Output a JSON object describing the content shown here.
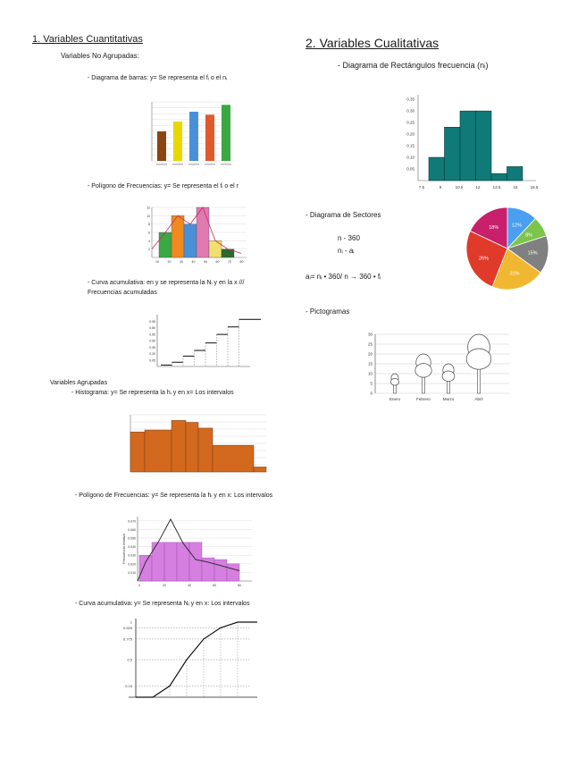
{
  "left": {
    "heading": "1. Variables Cuantitativas",
    "no_agrupadas": "Variables No Agrupadas:",
    "barras_label": "- Diagrama de barras: y= Se representa el fᵢ o el nᵢ",
    "poligono_label": "- Polígono de Frecuencias: y= Se representa el fᵢ o el r",
    "curva_label_1": "- Curva acumulativa: en y se representa la Nᵢ y en la x ///",
    "curva_label_2": "Frecuencias acumuladas",
    "agrupadas": "Variables Agrupadas",
    "histograma_label": "- Histograma: y= Se representa la hᵢ y en x= Los intervalos",
    "poligono2_label": "- Polígono de Frecuencias: y= Se representa la hᵢ y en x: Los intervalos",
    "curva2_label": "- Curva acumulativa: y= Se representa Nᵢ y en x: Los intervalos"
  },
  "right": {
    "heading": "2. Variables Cualitativas",
    "rect_label": "- Diagrama de Rectángulos frecuencia (nᵢ)",
    "sectores_label": "- Diagrama de Sectores",
    "rule_1": "n - 360",
    "rule_2": "nᵢ - aᵢ",
    "formula": "aᵢ= nᵢ • 360/ n → 360 • fᵢ",
    "picto_label": "- Pictogramas"
  },
  "colors": {
    "teal": "#107a78",
    "orange_bar": "#d2691e",
    "violet": "#d57fe0",
    "brown": "#8b4513",
    "yellow": "#e8d800",
    "blue": "#4a90d9",
    "red_orange": "#e05a2b",
    "green": "#3aa843",
    "pie_blue": "#4a9ff0",
    "pie_green": "#7cc54a",
    "pie_gray": "#808080",
    "pie_yellow": "#f0b830",
    "pie_red": "#e03a2a",
    "pie_magenta": "#c8206a"
  },
  "chart_data": [
    {
      "id": "barras",
      "type": "bar",
      "values": [
        3,
        4,
        5,
        4.7,
        5.7
      ],
      "colors": [
        "#8b4513",
        "#e8d800",
        "#4a90d9",
        "#e05a2b",
        "#3aa843"
      ],
      "ylim": [
        0,
        6
      ]
    },
    {
      "id": "poligono_frecuencias",
      "type": "bar",
      "y_ticks": [
        "2",
        "4",
        "6",
        "8",
        "10",
        "12"
      ],
      "x_ticks": [
        "10",
        "20",
        "30",
        "40",
        "50",
        "60",
        "70",
        "80"
      ],
      "values": [
        6,
        10,
        8,
        12,
        4,
        2
      ],
      "ylim": [
        0,
        12
      ]
    },
    {
      "id": "curva_acumulativa",
      "type": "line",
      "y_ticks": [
        "0.05",
        "0.20",
        "0.35",
        "0.50",
        "0.65",
        "0.80",
        "0.95"
      ],
      "values": [
        0.03,
        0.09,
        0.22,
        0.34,
        0.5,
        0.68,
        0.84,
        1.0
      ],
      "ylim": [
        0,
        1.1
      ]
    },
    {
      "id": "histograma",
      "type": "bar",
      "values": [
        10.5,
        11,
        13.5,
        13,
        11.5,
        7,
        1.3
      ],
      "ylim": [
        0,
        15
      ]
    },
    {
      "id": "poligono_intervalos",
      "type": "area",
      "ylabel": "Frecuencia relativa",
      "y_ticks": [
        "0.010",
        "0.020",
        "0.030",
        "0.040",
        "0.050",
        "0.060",
        "0.070"
      ],
      "values": [
        0.022,
        0.045,
        0.072,
        0.044,
        0.025,
        0.022,
        0.018,
        0.014
      ],
      "ylim": [
        0,
        0.075
      ]
    },
    {
      "id": "curva_acumulativa_intervalos",
      "type": "line",
      "y_ticks": [
        "1",
        "0.925",
        "0.775",
        "0.5",
        "0.15"
      ],
      "x": [
        0,
        1,
        2,
        3,
        4,
        5,
        6
      ],
      "values": [
        0,
        0,
        0.15,
        0.5,
        0.775,
        0.925,
        1
      ],
      "ylim": [
        0,
        1
      ]
    },
    {
      "id": "rectangulos",
      "type": "bar",
      "y_ticks": [
        "0.05",
        "0.10",
        "0.15",
        "0.20",
        "0.25",
        "0.30",
        "0.35"
      ],
      "x_ticks": [
        "7.5",
        "9",
        "10.5",
        "12",
        "13.5",
        "15",
        "16.5"
      ],
      "values": [
        0.1,
        0.23,
        0.3,
        0.3,
        0.03,
        0.06
      ],
      "ylim": [
        0,
        0.37
      ]
    },
    {
      "id": "sectores",
      "type": "pie",
      "slices": [
        {
          "label": "12%",
          "value": 12,
          "color": "#4a9ff0"
        },
        {
          "label": "8%",
          "value": 8,
          "color": "#7cc54a"
        },
        {
          "label": "15%",
          "value": 15,
          "color": "#808080"
        },
        {
          "label": "21%",
          "value": 21,
          "color": "#f0b830"
        },
        {
          "label": "26%",
          "value": 26,
          "color": "#e03a2a"
        },
        {
          "label": "18%",
          "value": 18,
          "color": "#c8206a"
        }
      ]
    },
    {
      "id": "pictograma",
      "type": "bar",
      "y_ticks": [
        "0",
        "5",
        "10",
        "15",
        "20",
        "25",
        "30"
      ],
      "categories": [
        "Enero",
        "Febrero",
        "Marzo",
        "Abril"
      ],
      "values": [
        10,
        20,
        15,
        30
      ],
      "ylim": [
        0,
        30
      ]
    }
  ]
}
